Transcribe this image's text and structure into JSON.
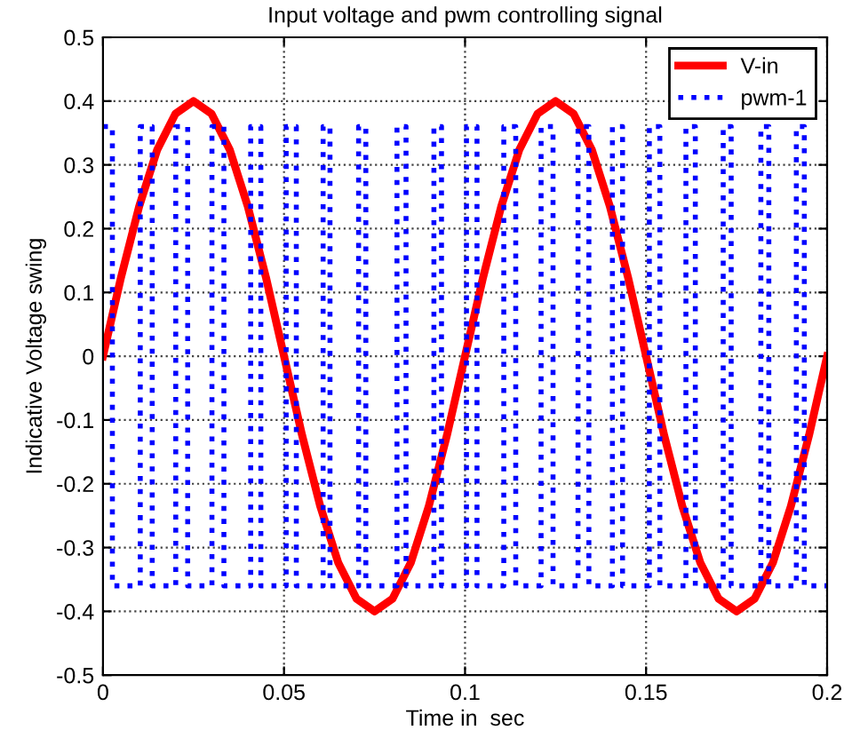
{
  "chart_data": {
    "type": "line",
    "title": "Input voltage and pwm controlling signal",
    "xlabel": "Time in  sec",
    "ylabel": "Indicative Voltage swing",
    "xlim": [
      0,
      0.2
    ],
    "ylim": [
      -0.5,
      0.5
    ],
    "xticks": [
      0,
      0.05,
      0.1,
      0.15,
      0.2
    ],
    "yticks": [
      -0.5,
      -0.4,
      -0.3,
      -0.2,
      -0.1,
      0,
      0.1,
      0.2,
      0.3,
      0.4,
      0.5
    ],
    "grid": true,
    "legend": "top right",
    "series": [
      {
        "name": "V-in",
        "color": "#ff0000",
        "line_style": "solid",
        "x": [
          0,
          0.005,
          0.01,
          0.015,
          0.02,
          0.025,
          0.03,
          0.035,
          0.04,
          0.045,
          0.05,
          0.055,
          0.06,
          0.065,
          0.07,
          0.075,
          0.08,
          0.085,
          0.09,
          0.095,
          0.1,
          0.105,
          0.11,
          0.115,
          0.12,
          0.125,
          0.13,
          0.135,
          0.14,
          0.145,
          0.15,
          0.155,
          0.16,
          0.165,
          0.17,
          0.175,
          0.18,
          0.185,
          0.19,
          0.195,
          0.2
        ],
        "values": [
          0,
          0.124,
          0.235,
          0.324,
          0.38,
          0.4,
          0.38,
          0.324,
          0.235,
          0.124,
          0,
          -0.124,
          -0.235,
          -0.324,
          -0.38,
          -0.4,
          -0.38,
          -0.324,
          -0.235,
          -0.124,
          0,
          0.124,
          0.235,
          0.324,
          0.38,
          0.4,
          0.38,
          0.324,
          0.235,
          0.124,
          0,
          -0.124,
          -0.235,
          -0.324,
          -0.38,
          -0.4,
          -0.38,
          -0.324,
          -0.235,
          -0.124,
          0
        ]
      },
      {
        "name": "pwm-1",
        "type": "step",
        "color": "#0000ff",
        "line_style": "dotted",
        "x": [
          0,
          0.0026,
          0.0103,
          0.0136,
          0.0201,
          0.0234,
          0.0301,
          0.0334,
          0.0408,
          0.0436,
          0.0506,
          0.0534,
          0.0608,
          0.0627,
          0.0706,
          0.0726,
          0.0812,
          0.0837,
          0.0914,
          0.0935,
          0.1004,
          0.1033,
          0.1107,
          0.114,
          0.121,
          0.1243,
          0.1312,
          0.1342,
          0.1407,
          0.1435,
          0.1509,
          0.1538,
          0.161,
          0.1636,
          0.1713,
          0.1735,
          0.1817,
          0.1839,
          0.1915,
          0.1937,
          0.2
        ],
        "values": [
          0.36,
          -0.36,
          0.36,
          -0.36,
          0.36,
          -0.36,
          0.36,
          -0.36,
          0.36,
          -0.36,
          0.36,
          -0.36,
          0.36,
          -0.36,
          0.36,
          -0.36,
          0.36,
          -0.36,
          0.36,
          -0.36,
          0.36,
          -0.36,
          0.36,
          -0.36,
          0.36,
          -0.36,
          0.36,
          -0.36,
          0.36,
          -0.36,
          0.36,
          -0.36,
          0.36,
          -0.36,
          0.36,
          -0.36,
          0.36,
          -0.36,
          0.36,
          -0.36,
          -0.36
        ]
      }
    ]
  }
}
